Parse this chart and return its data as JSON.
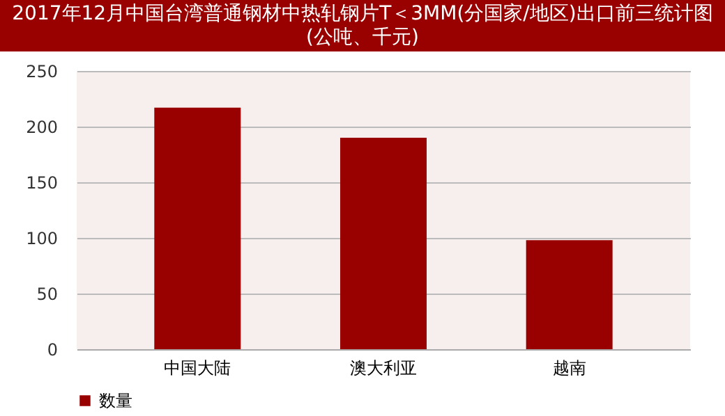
{
  "chart_data": {
    "type": "bar",
    "title": "2017年12月中国台湾普通钢材中热轧钢片T＜3MM(分国家/地区)出口前三统计图(公吨、千元)",
    "categories": [
      "中国大陆",
      "澳大利亚",
      "越南"
    ],
    "series": [
      {
        "name": "数量",
        "color": "#990000",
        "values": [
          217,
          190,
          98
        ]
      }
    ],
    "ylim": [
      0,
      250
    ],
    "yticks": [
      0,
      50,
      100,
      150,
      200,
      250
    ],
    "grid": "y",
    "legend": "bottom"
  }
}
